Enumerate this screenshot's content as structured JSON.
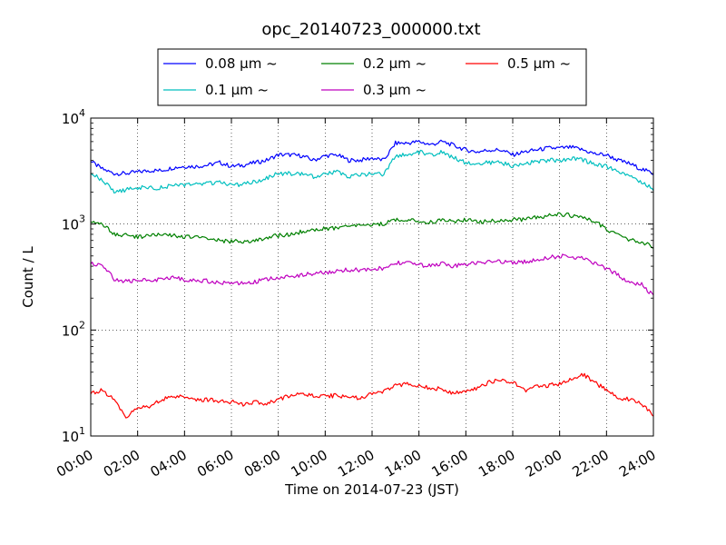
{
  "chart_data": {
    "type": "line",
    "title": "opc_20140723_000000.txt",
    "xlabel": "Time on 2014-07-23 (JST)",
    "ylabel": "Count / L",
    "x_unit": "hour",
    "xlim": [
      0,
      24
    ],
    "ylim": [
      10,
      10000
    ],
    "yscale": "log",
    "grid": true,
    "legend_position": "top",
    "x_tick_labels": [
      "00:00",
      "02:00",
      "04:00",
      "06:00",
      "08:00",
      "10:00",
      "12:00",
      "14:00",
      "16:00",
      "18:00",
      "20:00",
      "22:00",
      "24:00"
    ],
    "y_ticks": [
      {
        "base": "10",
        "exp": "1"
      },
      {
        "base": "10",
        "exp": "2"
      },
      {
        "base": "10",
        "exp": "3"
      },
      {
        "base": "10",
        "exp": "4"
      }
    ],
    "x": [
      0,
      0.5,
      1,
      1.5,
      2,
      2.5,
      3,
      3.5,
      4,
      4.5,
      5,
      5.5,
      6,
      6.5,
      7,
      7.5,
      8,
      8.5,
      9,
      9.5,
      10,
      10.5,
      11,
      11.5,
      12,
      12.5,
      13,
      13.5,
      14,
      14.5,
      15,
      15.5,
      16,
      16.5,
      17,
      17.5,
      18,
      18.5,
      19,
      19.5,
      20,
      20.5,
      21,
      21.5,
      22,
      22.5,
      23,
      23.5,
      24
    ],
    "series": [
      {
        "name": "0.08 μm ~",
        "color": "#0000ff",
        "values": [
          3900,
          3300,
          3000,
          3000,
          3100,
          3200,
          3200,
          3400,
          3500,
          3500,
          3600,
          3800,
          3500,
          3600,
          3800,
          4000,
          4500,
          4500,
          4400,
          4000,
          4400,
          4500,
          4000,
          4000,
          4200,
          4000,
          5800,
          5800,
          6000,
          5600,
          6000,
          5500,
          5000,
          4800,
          5000,
          5000,
          4500,
          4800,
          5000,
          5200,
          5200,
          5300,
          5000,
          4600,
          4500,
          4000,
          3700,
          3300,
          3000
        ]
      },
      {
        "name": "0.1 μm ~",
        "color": "#00bfbf",
        "values": [
          3000,
          2600,
          2000,
          2100,
          2200,
          2200,
          2200,
          2300,
          2300,
          2400,
          2400,
          2500,
          2300,
          2400,
          2500,
          2700,
          3000,
          3000,
          3000,
          2800,
          3000,
          3100,
          2800,
          2900,
          3000,
          2900,
          4400,
          4500,
          4800,
          4500,
          4800,
          4200,
          3800,
          3700,
          3800,
          3800,
          3500,
          3700,
          3900,
          4000,
          4000,
          4200,
          4000,
          3700,
          3500,
          3100,
          2800,
          2500,
          2100
        ]
      },
      {
        "name": "0.2 μm ~",
        "color": "#008000",
        "values": [
          1050,
          1000,
          800,
          780,
          760,
          780,
          790,
          780,
          760,
          750,
          730,
          700,
          680,
          690,
          700,
          750,
          780,
          800,
          850,
          880,
          900,
          920,
          950,
          980,
          1000,
          1000,
          1100,
          1100,
          1050,
          1050,
          1080,
          1060,
          1100,
          1050,
          1060,
          1080,
          1100,
          1100,
          1150,
          1200,
          1250,
          1200,
          1150,
          1050,
          900,
          780,
          700,
          680,
          600
        ]
      },
      {
        "name": "0.3 μm ~",
        "color": "#bf00bf",
        "values": [
          420,
          410,
          300,
          290,
          290,
          300,
          300,
          310,
          300,
          295,
          290,
          280,
          280,
          275,
          285,
          300,
          310,
          320,
          330,
          340,
          350,
          360,
          370,
          370,
          380,
          380,
          430,
          430,
          410,
          400,
          420,
          400,
          420,
          430,
          440,
          440,
          430,
          440,
          460,
          480,
          500,
          490,
          480,
          430,
          380,
          330,
          280,
          270,
          210
        ]
      },
      {
        "name": "0.5 μm ~",
        "color": "#ff0000",
        "values": [
          25,
          27,
          22,
          15,
          18,
          19,
          22,
          24,
          23,
          22,
          22,
          21,
          21,
          20,
          21,
          20,
          22,
          24,
          25,
          24,
          24,
          24,
          23,
          23,
          25,
          26,
          30,
          31,
          30,
          28,
          28,
          25,
          27,
          28,
          32,
          34,
          32,
          27,
          29,
          30,
          31,
          35,
          38,
          32,
          27,
          23,
          22,
          20,
          16
        ]
      }
    ]
  }
}
